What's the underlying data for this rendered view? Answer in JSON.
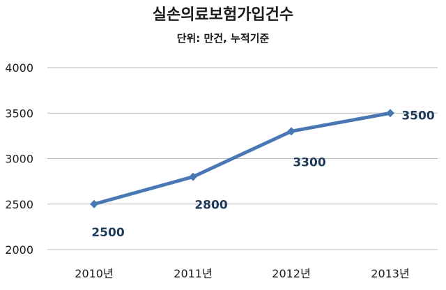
{
  "chart_data": {
    "type": "line",
    "title": "실손의료보험가입건수",
    "subtitle": "단위: 만건, 누적기준",
    "categories": [
      "2010년",
      "2011년",
      "2012년",
      "2013년"
    ],
    "series": [
      {
        "values": [
          2500,
          2800,
          3300,
          3500
        ],
        "data_labels": [
          "2500",
          "2800",
          "3300",
          "3500"
        ]
      }
    ],
    "ylim": [
      2000,
      4000
    ],
    "yticks": [
      2000,
      2500,
      3000,
      3500,
      4000
    ],
    "ytick_labels": [
      "2000",
      "2500",
      "3000",
      "3500",
      "4000"
    ],
    "grid": true,
    "colors": {
      "line": "#4a78b5",
      "marker": "#4a78b5",
      "grid": "#b8b8b8"
    }
  }
}
